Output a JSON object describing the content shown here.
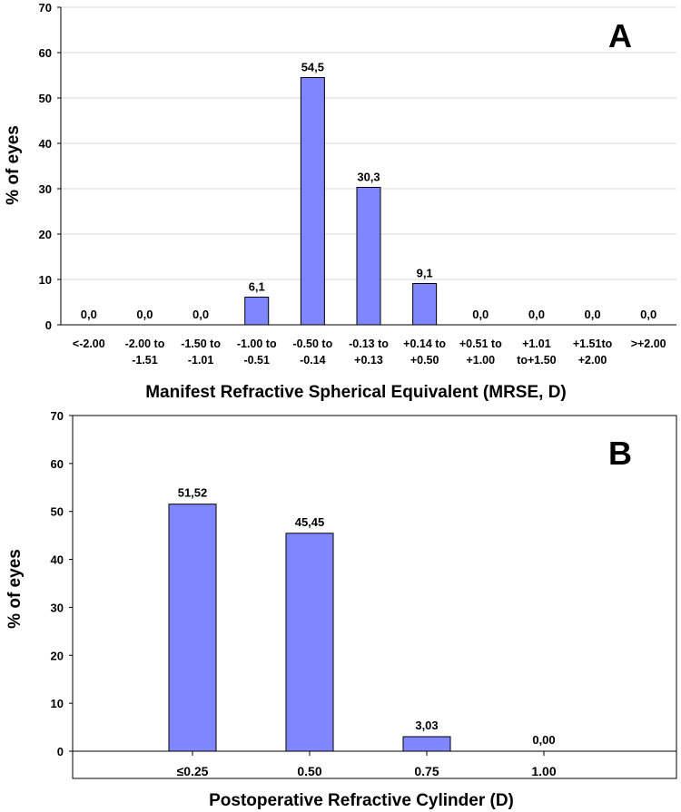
{
  "chart_data": [
    {
      "panel": "A",
      "type": "bar",
      "xlabel": "Manifest Refractive Spherical Equivalent (MRSE, D)",
      "ylabel": "% of eyes",
      "ylim": [
        0,
        70
      ],
      "yticks": [
        0,
        10,
        20,
        30,
        40,
        50,
        60,
        70
      ],
      "grid": true,
      "categories": [
        [
          "<-2.00"
        ],
        [
          "-2.00 to",
          "-1.51"
        ],
        [
          "-1.50 to",
          "-1.01"
        ],
        [
          "-1.00 to",
          "-0.51"
        ],
        [
          "-0.50 to",
          "-0.14"
        ],
        [
          "-0.13 to",
          "+0.13"
        ],
        [
          "+0.14 to",
          "+0.50"
        ],
        [
          "+0.51 to",
          "+1.00"
        ],
        [
          "+1.01",
          "to+1.50"
        ],
        [
          "+1.51to",
          "+2.00"
        ],
        [
          ">+2.00"
        ]
      ],
      "values": [
        0.0,
        0.0,
        0.0,
        6.1,
        54.5,
        30.3,
        9.1,
        0.0,
        0.0,
        0.0,
        0.0
      ],
      "value_labels": [
        "0,0",
        "0,0",
        "0,0",
        "6,1",
        "54,5",
        "30,3",
        "9,1",
        "0,0",
        "0,0",
        "0,0",
        "0,0"
      ],
      "bar_color": "#7f86ff"
    },
    {
      "panel": "B",
      "type": "bar",
      "xlabel": "Postoperative Refractive Cylinder (D)",
      "ylabel": "% of eyes",
      "ylim": [
        0,
        70
      ],
      "yticks": [
        0,
        10,
        20,
        30,
        40,
        50,
        60,
        70
      ],
      "grid": false,
      "categories": [
        [
          "≤0.25"
        ],
        [
          "0.50"
        ],
        [
          "0.75"
        ],
        [
          "1.00"
        ]
      ],
      "values": [
        51.52,
        45.45,
        3.03,
        0.0
      ],
      "value_labels": [
        "51,52",
        "45,45",
        "3,03",
        "0,00"
      ],
      "bar_color": "#7f86ff"
    }
  ]
}
